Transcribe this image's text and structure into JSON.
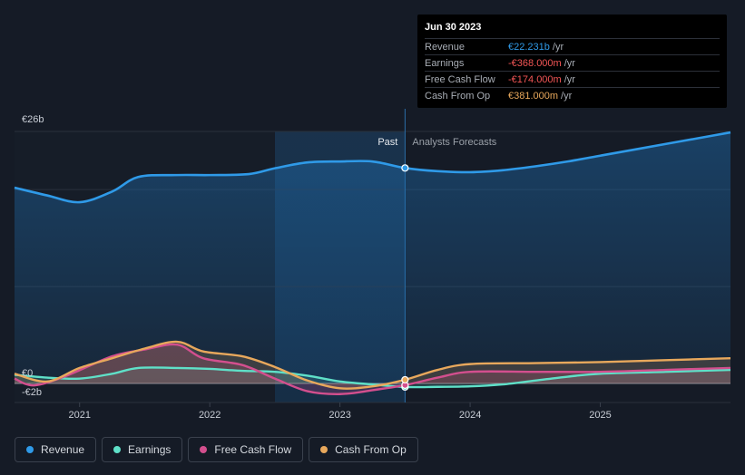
{
  "tooltip": {
    "date": "Jun 30 2023",
    "rows": [
      {
        "label": "Revenue",
        "value": "€22.231b",
        "unit": "/yr",
        "color": "#2f9ae8"
      },
      {
        "label": "Earnings",
        "value": "-€368.000m",
        "unit": "/yr",
        "color": "#f25555"
      },
      {
        "label": "Free Cash Flow",
        "value": "-€174.000m",
        "unit": "/yr",
        "color": "#f25555"
      },
      {
        "label": "Cash From Op",
        "value": "€381.000m",
        "unit": "/yr",
        "color": "#e8a85c"
      }
    ]
  },
  "legend": [
    {
      "label": "Revenue",
      "color": "#2f9ae8"
    },
    {
      "label": "Earnings",
      "color": "#5fe0c8"
    },
    {
      "label": "Free Cash Flow",
      "color": "#d34f8e"
    },
    {
      "label": "Cash From Op",
      "color": "#e8a85c"
    }
  ],
  "chart_data": {
    "type": "line",
    "y_labels": [
      "€26b",
      "€0",
      "-€2b"
    ],
    "ylim": [
      -2,
      26
    ],
    "x_ticks": [
      "2021",
      "2022",
      "2023",
      "2024",
      "2025"
    ],
    "xlim": [
      2020.5,
      2026.0
    ],
    "past_label": "Past",
    "forecast_label": "Analysts Forecasts",
    "past_shade_start": 2022.5,
    "divider_x": 2023.5,
    "series": [
      {
        "name": "Revenue",
        "color": "#2f9ae8",
        "x": [
          2020.5,
          2020.75,
          2021.0,
          2021.25,
          2021.45,
          2021.75,
          2022.0,
          2022.3,
          2022.5,
          2022.75,
          2023.0,
          2023.25,
          2023.5,
          2023.75,
          2024.0,
          2024.25,
          2024.5,
          2024.75,
          2025.0,
          2025.25,
          2025.5,
          2025.75,
          2026.0
        ],
        "y": [
          20.2,
          19.4,
          18.7,
          19.8,
          21.3,
          21.5,
          21.5,
          21.6,
          22.2,
          22.8,
          22.9,
          22.9,
          22.231,
          21.9,
          21.8,
          22.0,
          22.4,
          22.9,
          23.5,
          24.1,
          24.7,
          25.3,
          25.9
        ]
      },
      {
        "name": "Earnings",
        "color": "#5fe0c8",
        "x": [
          2020.5,
          2020.75,
          2021.0,
          2021.25,
          2021.45,
          2021.75,
          2022.0,
          2022.25,
          2022.5,
          2022.75,
          2023.0,
          2023.25,
          2023.5,
          2023.75,
          2024.0,
          2024.25,
          2024.5,
          2024.75,
          2025.0,
          2025.5,
          2026.0
        ],
        "y": [
          0.9,
          0.6,
          0.5,
          1.0,
          1.6,
          1.6,
          1.5,
          1.3,
          1.2,
          0.8,
          0.2,
          -0.1,
          -0.368,
          -0.35,
          -0.3,
          -0.1,
          0.3,
          0.7,
          1.0,
          1.2,
          1.4
        ]
      },
      {
        "name": "Free Cash Flow",
        "color": "#d34f8e",
        "x": [
          2020.5,
          2020.65,
          2020.9,
          2021.25,
          2021.5,
          2021.75,
          2021.95,
          2022.25,
          2022.5,
          2022.75,
          2023.0,
          2023.25,
          2023.5,
          2023.75,
          2024.0,
          2024.5,
          2025.0,
          2025.5,
          2026.0
        ],
        "y": [
          0.5,
          -0.2,
          0.8,
          2.8,
          3.5,
          4.0,
          2.6,
          1.9,
          0.5,
          -0.8,
          -1.1,
          -0.7,
          -0.174,
          0.6,
          1.2,
          1.2,
          1.2,
          1.4,
          1.6
        ]
      },
      {
        "name": "Cash From Op",
        "color": "#e8a85c",
        "x": [
          2020.5,
          2020.75,
          2021.0,
          2021.25,
          2021.5,
          2021.75,
          2021.95,
          2022.25,
          2022.5,
          2022.75,
          2023.0,
          2023.25,
          2023.5,
          2023.75,
          2024.0,
          2024.5,
          2025.0,
          2025.5,
          2026.0
        ],
        "y": [
          1.0,
          0.2,
          1.6,
          2.6,
          3.6,
          4.3,
          3.3,
          2.8,
          1.7,
          0.3,
          -0.5,
          -0.3,
          0.381,
          1.4,
          2.0,
          2.1,
          2.2,
          2.4,
          2.6
        ]
      }
    ]
  }
}
